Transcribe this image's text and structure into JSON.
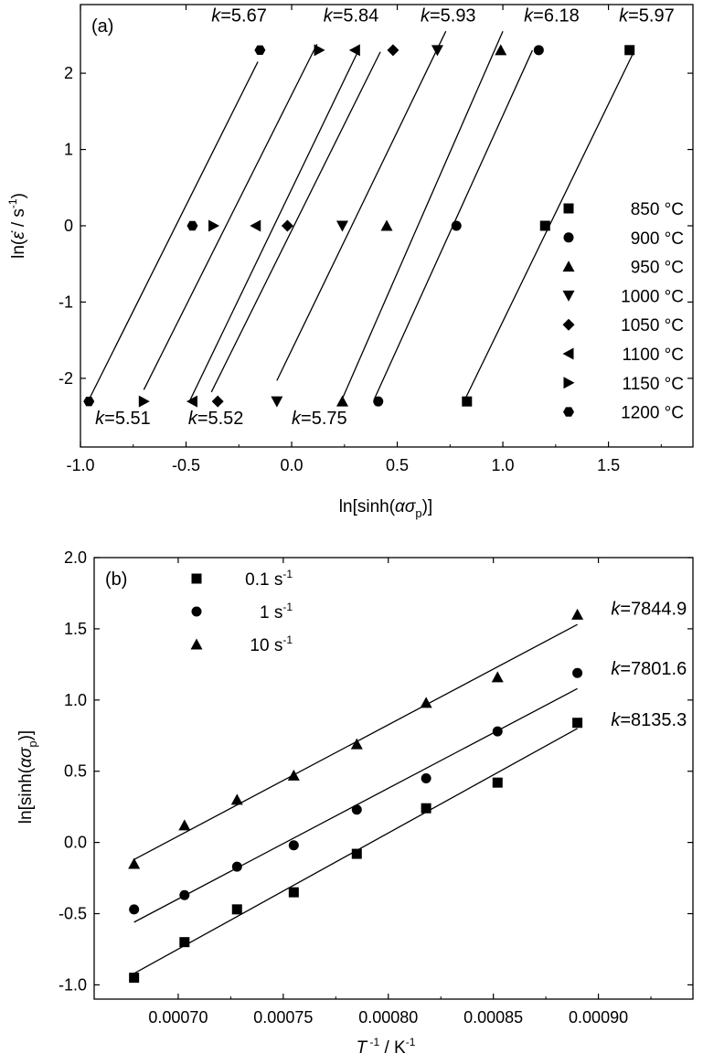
{
  "chart_data": [
    {
      "type": "scatter",
      "panel_label": "(a)",
      "xlabel": "ln[sinh(ασ_p)]",
      "ylabel": "ln(ε̇ / s^-1)",
      "xlim": [
        -1.0,
        1.9
      ],
      "ylim": [
        -2.9,
        2.9
      ],
      "xticks": [
        "-1.0",
        "-0.5",
        "0.0",
        "0.5",
        "1.0",
        "1.5"
      ],
      "yticks": [
        "-2",
        "-1",
        "0",
        "1",
        "2"
      ],
      "legend_position": "right",
      "series": [
        {
          "name": "850 °C",
          "marker": "square",
          "x": [
            0.83,
            1.2,
            1.6
          ],
          "y": [
            -2.303,
            0,
            2.303
          ],
          "slope_label": "k=5.97"
        },
        {
          "name": "900 °C",
          "marker": "circle",
          "x": [
            0.41,
            0.78,
            1.17
          ],
          "y": [
            -2.303,
            0,
            2.303
          ],
          "slope_label": "k=6.18"
        },
        {
          "name": "950 °C",
          "marker": "triangle-up",
          "x": [
            0.24,
            0.45,
            0.99
          ],
          "y": [
            -2.303,
            0,
            2.303
          ],
          "slope_label": "k=5.75"
        },
        {
          "name": "1000 °C",
          "marker": "triangle-down",
          "x": [
            -0.07,
            0.24,
            0.69
          ],
          "y": [
            -2.303,
            0,
            2.303
          ],
          "slope_label": "k=5.93"
        },
        {
          "name": "1050 °C",
          "marker": "diamond",
          "x": [
            -0.35,
            -0.02,
            0.48
          ],
          "y": [
            -2.303,
            0,
            2.303
          ],
          "slope_label": "k=5.52"
        },
        {
          "name": "1100 °C",
          "marker": "triangle-left",
          "x": [
            -0.47,
            -0.17,
            0.3
          ],
          "y": [
            -2.303,
            0,
            2.303
          ],
          "slope_label": "k=5.84"
        },
        {
          "name": "1150 °C",
          "marker": "triangle-right",
          "x": [
            -0.7,
            -0.37,
            0.13
          ],
          "y": [
            -2.303,
            0,
            2.303
          ],
          "slope_label": "k=5.51"
        },
        {
          "name": "1200 °C",
          "marker": "hexagon",
          "x": [
            -0.96,
            -0.47,
            -0.15
          ],
          "y": [
            -2.303,
            0,
            2.303
          ],
          "slope_label": "k=5.67"
        }
      ],
      "fit_lines": [
        {
          "x": [
            0.82,
            1.62
          ],
          "y": [
            -2.28,
            2.28
          ]
        },
        {
          "x": [
            0.39,
            1.14
          ],
          "y": [
            -2.28,
            2.3
          ]
        },
        {
          "x": [
            0.23,
            1.0
          ],
          "y": [
            -2.33,
            2.55
          ]
        },
        {
          "x": [
            -0.07,
            0.73
          ],
          "y": [
            -2.03,
            2.55
          ]
        },
        {
          "x": [
            -0.38,
            0.42
          ],
          "y": [
            -2.18,
            2.28
          ]
        },
        {
          "x": [
            -0.48,
            0.32
          ],
          "y": [
            -2.28,
            2.32
          ]
        },
        {
          "x": [
            -0.7,
            0.12
          ],
          "y": [
            -2.15,
            2.38
          ]
        },
        {
          "x": [
            -0.96,
            -0.16
          ],
          "y": [
            -2.28,
            2.15
          ]
        }
      ],
      "annotations": [
        {
          "prefix": "k",
          "text": "=5.67",
          "pos": [
            -0.38,
            2.68
          ]
        },
        {
          "prefix": "k",
          "text": "=5.84",
          "pos": [
            0.15,
            2.68
          ]
        },
        {
          "prefix": "k",
          "text": "=5.93",
          "pos": [
            0.61,
            2.68
          ]
        },
        {
          "prefix": "k",
          "text": "=6.18",
          "pos": [
            1.1,
            2.68
          ]
        },
        {
          "prefix": "k",
          "text": "=5.97",
          "pos": [
            1.55,
            2.68
          ]
        },
        {
          "prefix": "k",
          "text": "=5.51",
          "pos": [
            -0.93,
            -2.6
          ]
        },
        {
          "prefix": "k",
          "text": "=5.52",
          "pos": [
            -0.49,
            -2.6
          ]
        },
        {
          "prefix": "k",
          "text": "=5.75",
          "pos": [
            0.0,
            -2.6
          ]
        }
      ]
    },
    {
      "type": "scatter",
      "panel_label": "(b)",
      "xlabel": "T^-1 / K^-1",
      "ylabel": "ln[sinh(ασ_p)]",
      "xlim": [
        0.00066,
        0.000945
      ],
      "ylim": [
        -1.1,
        2.0
      ],
      "xticks": [
        "0.00070",
        "0.00075",
        "0.00080",
        "0.00085",
        "0.00090"
      ],
      "yticks": [
        "-1.0",
        "-0.5",
        "0.0",
        "0.5",
        "1.0",
        "1.5",
        "2.0"
      ],
      "legend_position": "top-left",
      "x": [
        0.000679,
        0.000703,
        0.000728,
        0.000755,
        0.000785,
        0.000818,
        0.000852,
        0.00089
      ],
      "series": [
        {
          "name": "0.1 s-1",
          "marker": "square",
          "y": [
            -0.95,
            -0.7,
            -0.47,
            -0.35,
            -0.08,
            0.24,
            0.42,
            0.84
          ],
          "slope_label": "k=8135.3"
        },
        {
          "name": "1 s-1",
          "marker": "circle",
          "y": [
            -0.47,
            -0.37,
            -0.17,
            -0.02,
            0.23,
            0.45,
            0.78,
            1.19
          ],
          "slope_label": "k=7801.6"
        },
        {
          "name": "10 s-1",
          "marker": "triangle-up",
          "y": [
            -0.15,
            0.12,
            0.3,
            0.47,
            0.69,
            0.98,
            1.16,
            1.6
          ],
          "slope_label": "k=7844.9"
        }
      ],
      "fit_lines": [
        {
          "x": [
            0.000679,
            0.00089
          ],
          "y": [
            -0.92,
            0.8
          ]
        },
        {
          "x": [
            0.000679,
            0.00089
          ],
          "y": [
            -0.56,
            1.08
          ]
        },
        {
          "x": [
            0.000679,
            0.00089
          ],
          "y": [
            -0.12,
            1.53
          ]
        }
      ],
      "annotations": [
        {
          "prefix": "k",
          "text": "=7844.9",
          "pos": [
            0.000906,
            1.6
          ]
        },
        {
          "prefix": "k",
          "text": "=7801.6",
          "pos": [
            0.000906,
            1.18
          ]
        },
        {
          "prefix": "k",
          "text": "=8135.3",
          "pos": [
            0.000906,
            0.82
          ]
        }
      ]
    }
  ]
}
